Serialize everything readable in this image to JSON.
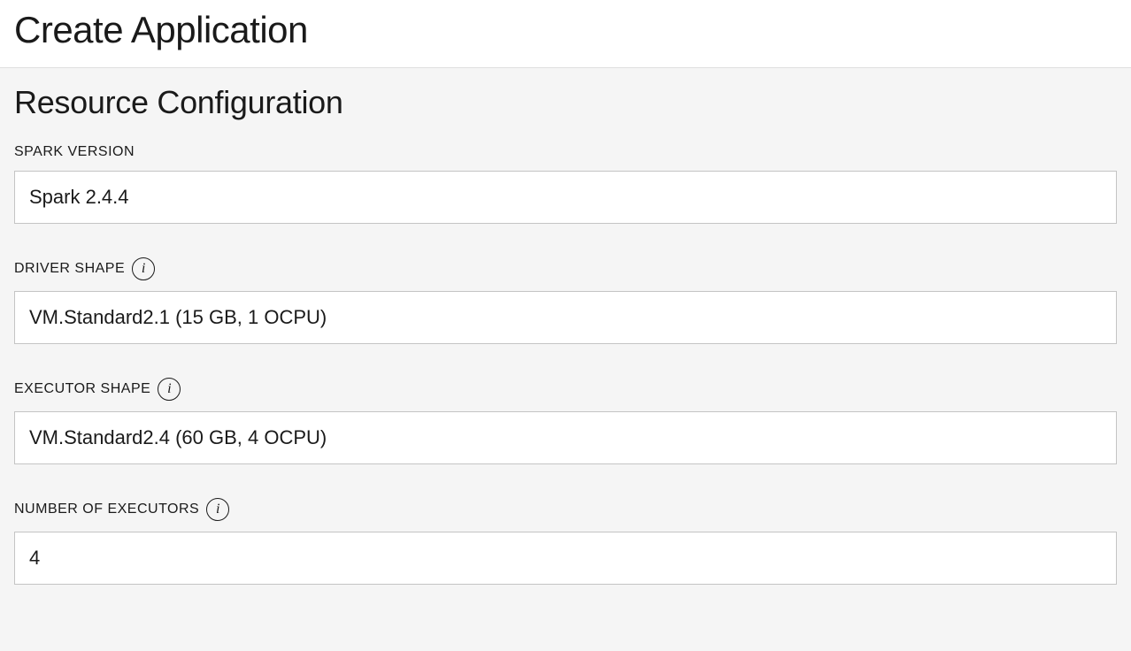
{
  "header": {
    "title": "Create Application"
  },
  "section": {
    "title": "Resource Configuration"
  },
  "fields": {
    "spark_version": {
      "label": "SPARK VERSION",
      "value": "Spark 2.4.4",
      "has_info": false
    },
    "driver_shape": {
      "label": "DRIVER SHAPE",
      "value": "VM.Standard2.1 (15 GB, 1 OCPU)",
      "has_info": true
    },
    "executor_shape": {
      "label": "EXECUTOR SHAPE",
      "value": "VM.Standard2.4 (60 GB, 4 OCPU)",
      "has_info": true
    },
    "number_of_executors": {
      "label": "NUMBER OF EXECUTORS",
      "value": "4",
      "has_info": true
    }
  },
  "info_icon_glyph": "i",
  "colors": {
    "header_bg": "#ffffff",
    "body_bg": "#f5f5f5",
    "border": "#c4c4c4",
    "text": "#1a1a1a",
    "divider": "#e0e0e0"
  }
}
